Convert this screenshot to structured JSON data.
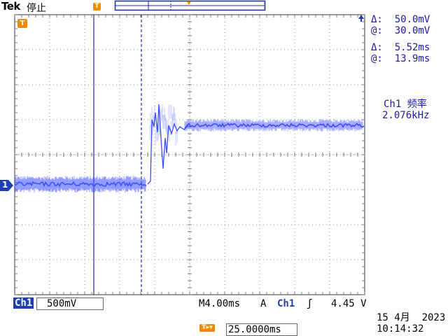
{
  "header": {
    "brand": "Tek",
    "run_status": "停止",
    "trigger_marker": "T"
  },
  "markers": {
    "trigger_left": "T",
    "channel1": "1"
  },
  "readouts": {
    "delta_v": "Δ:  50.0mV",
    "at_v": "@:  30.0mV",
    "delta_t": "Δ:  5.52ms",
    "at_t": "@:  13.9ms",
    "freq_label": "Ch1 频率",
    "freq_value": "2.076kHz"
  },
  "footer": {
    "ch1_label": "Ch1",
    "ch1_scale": "500mV",
    "timebase": "M4.00ms",
    "trigger_mode": "A",
    "trigger_source": "Ch1",
    "trigger_slope": "ʃ",
    "trigger_level": "4.45 V",
    "position_icon": "T▸▾",
    "position_value": "25.0000ms",
    "date": "15 4月  2023",
    "time": "10:14:32"
  },
  "colors": {
    "trace": "#3b4cff",
    "grid": "#9a9a9a",
    "trigger": "#f08a00",
    "channel": "#1e3fb0",
    "readout": "#1a1aa8"
  }
}
